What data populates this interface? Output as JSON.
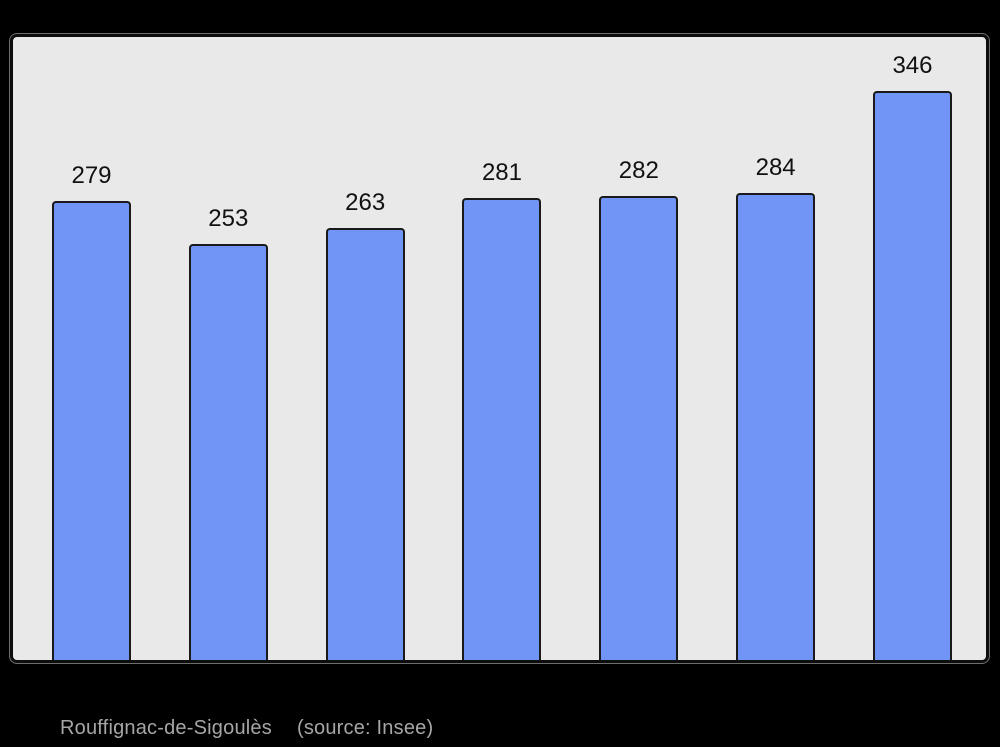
{
  "page": {
    "background_color": "#000000"
  },
  "caption": {
    "title": "Rouffignac-de-Sigoulès",
    "source": "(source: Insee)"
  },
  "chart_data": {
    "type": "bar",
    "values": [
      279,
      253,
      263,
      281,
      282,
      284,
      346
    ],
    "value_labels": [
      "279",
      "253",
      "263",
      "281",
      "282",
      "284",
      "346"
    ],
    "title": "",
    "xlabel": "",
    "ylabel": "",
    "ylim": [
      0,
      346
    ],
    "grid": false,
    "legend": false,
    "bar_color": "#7195f6",
    "bar_border_color": "#1a1a1a",
    "plot_background_color": "#e9e9e9",
    "plot_border_color": "#0d0d0d",
    "label_color": "#111111",
    "caption_color": "#a6a6a6"
  }
}
